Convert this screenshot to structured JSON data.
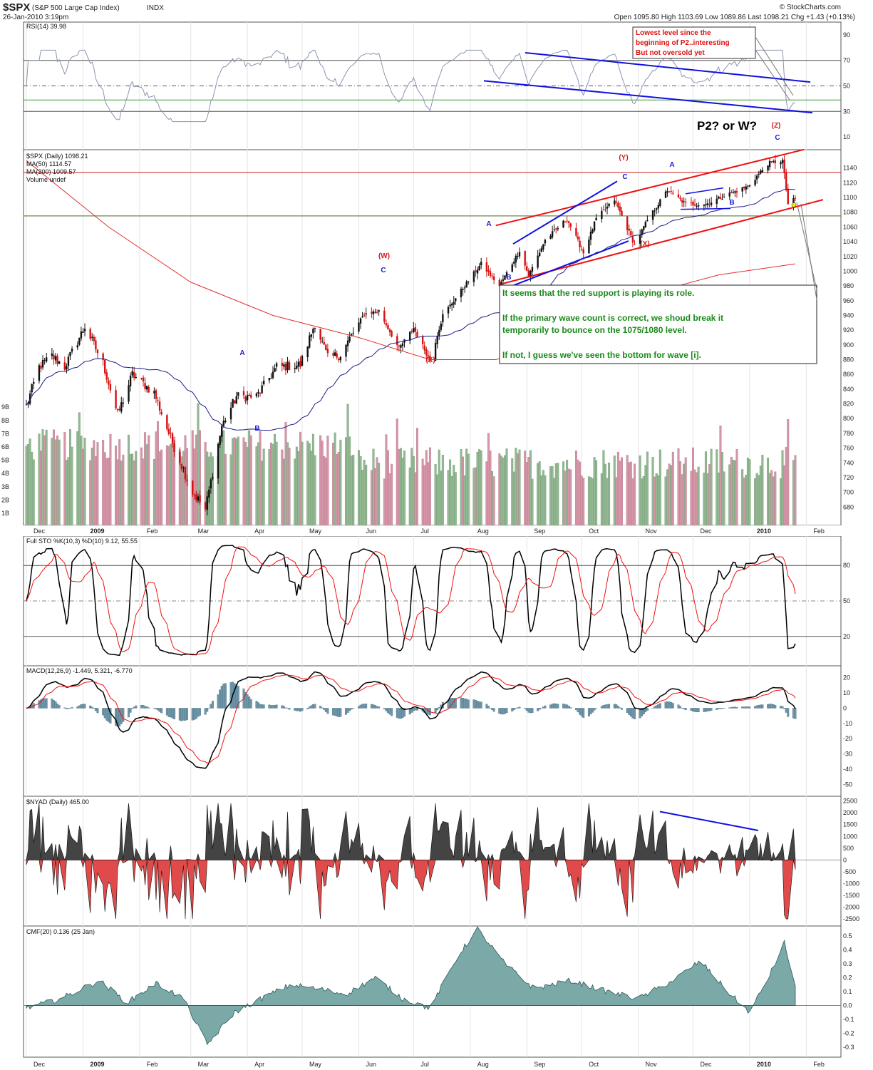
{
  "header": {
    "ticker": "$SPX",
    "name": "(S&P 500 Large Cap Index)",
    "exchange": "INDX",
    "datetime": "26-Jan-2010 3:19pm",
    "watermark": "© StockCharts.com",
    "quote": "Open 1095.80  High 1103.69  Low 1089.86  Last 1098.21  Chg +1.43 (+0.13%)"
  },
  "colors": {
    "up": "#111111",
    "down": "#d41111",
    "ma50": "#1c1c8c",
    "ma200": "#e03030",
    "channel_red": "#ee1111",
    "channel_blue": "#1010e0",
    "volume_up": "#94b894",
    "volume_down": "#d596a8",
    "stoch_k": "#000000",
    "stoch_d": "#ee1111",
    "macd_hist": "#6f97aa",
    "nyad_pos": "#444444",
    "nyad_neg": "#e04a4a",
    "cmf_fill": "#7aa9a8",
    "note_green": "#1a8a1a"
  },
  "icons": {
    "volume": "bar-chart-icon"
  },
  "chart_data": [
    {
      "panel": "rsi",
      "type": "line",
      "label": "RSI(14) 39.98",
      "ylim": [
        0,
        100
      ],
      "yticks": [
        "90",
        "70",
        "50",
        "30",
        "10"
      ],
      "reference_lines": [
        70,
        50,
        30
      ],
      "support_line": 39
    },
    {
      "panel": "price",
      "type": "ohlc",
      "label": "$SPX (Daily) 1098.21",
      "legend": [
        "MA(50) 1114.57",
        "MA(200) 1009.57",
        "Volume undef"
      ],
      "ylim": [
        660,
        1160
      ],
      "yticks": [
        "1140",
        "1120",
        "1100",
        "1080",
        "1060",
        "1040",
        "1020",
        "1000",
        "980",
        "960",
        "940",
        "920",
        "900",
        "880",
        "860",
        "840",
        "820",
        "800",
        "780",
        "760",
        "740",
        "720",
        "700",
        "680"
      ],
      "volume_ticks": [
        "9B",
        "8B",
        "7B",
        "6B",
        "5B",
        "4B",
        "3B",
        "2B",
        "1B"
      ],
      "x_months": [
        "Dec",
        "2009",
        "Feb",
        "Mar",
        "Apr",
        "May",
        "Jun",
        "Jul",
        "Aug",
        "Sep",
        "Oct",
        "Nov",
        "Dec",
        "2010",
        "Feb"
      ],
      "close_path": [
        [
          "2008-12-01",
          817
        ],
        [
          "2008-12-08",
          870
        ],
        [
          "2008-12-15",
          885
        ],
        [
          "2008-12-22",
          870
        ],
        [
          "2009-01-02",
          925
        ],
        [
          "2009-01-12",
          875
        ],
        [
          "2009-01-20",
          805
        ],
        [
          "2009-01-28",
          860
        ],
        [
          "2009-02-09",
          835
        ],
        [
          "2009-02-17",
          780
        ],
        [
          "2009-03-02",
          700
        ],
        [
          "2009-03-09",
          677
        ],
        [
          "2009-03-18",
          790
        ],
        [
          "2009-03-26",
          830
        ],
        [
          "2009-04-06",
          830
        ],
        [
          "2009-04-17",
          870
        ],
        [
          "2009-04-30",
          873
        ],
        [
          "2009-05-08",
          930
        ],
        [
          "2009-05-15",
          882
        ],
        [
          "2009-05-22",
          887
        ],
        [
          "2009-06-04",
          942
        ],
        [
          "2009-06-12",
          946
        ],
        [
          "2009-06-23",
          895
        ],
        [
          "2009-07-01",
          923
        ],
        [
          "2009-07-10",
          879
        ],
        [
          "2009-07-17",
          940
        ],
        [
          "2009-07-31",
          987
        ],
        [
          "2009-08-07",
          1010
        ],
        [
          "2009-08-17",
          980
        ],
        [
          "2009-08-28",
          1028
        ],
        [
          "2009-09-02",
          994
        ],
        [
          "2009-09-11",
          1042
        ],
        [
          "2009-09-23",
          1071
        ],
        [
          "2009-10-02",
          1025
        ],
        [
          "2009-10-09",
          1071
        ],
        [
          "2009-10-19",
          1097
        ],
        [
          "2009-10-30",
          1036
        ],
        [
          "2009-11-06",
          1069
        ],
        [
          "2009-11-17",
          1110
        ],
        [
          "2009-11-27",
          1091
        ],
        [
          "2009-12-08",
          1091
        ],
        [
          "2009-12-18",
          1102
        ],
        [
          "2009-12-31",
          1115
        ],
        [
          "2010-01-11",
          1146
        ],
        [
          "2010-01-19",
          1150
        ],
        [
          "2010-01-22",
          1091
        ],
        [
          "2010-01-26",
          1098
        ]
      ],
      "support_channel": {
        "upper": [
          [
            "2009-08-15",
            1062
          ],
          [
            "2010-01-26",
            1165
          ]
        ],
        "lower": [
          [
            "2009-08-15",
            983
          ],
          [
            "2010-01-26",
            1095
          ]
        ]
      },
      "wave_labels_blue": [
        "A",
        "B",
        "C",
        "A",
        "B",
        "C",
        "A",
        "B",
        "C",
        "A",
        "B",
        "C"
      ],
      "wave_labels_red": [
        "(W)",
        "(X)",
        "(Y)",
        "(X)",
        "(Z)"
      ],
      "annotation_title": "P2? or W?",
      "annotation_lines": [
        "It seems that the red support is playing its role.",
        "",
        "If the primary wave count is correct, we shoud break it",
        "temporarily to bounce on the 1075/1080 level.",
        "",
        "If not, I guess we've seen the bottom for wave [i]."
      ],
      "rsi_note": [
        "Lowest level since the",
        "beginning of P2..interesting",
        "But not oversold yet"
      ]
    },
    {
      "panel": "stochastic",
      "type": "line",
      "label": "Full STO %K(10,3) %D(10) 9.12, 55.55",
      "ylim": [
        0,
        100
      ],
      "yticks": [
        "80",
        "50",
        "20"
      ]
    },
    {
      "panel": "macd",
      "type": "line",
      "label": "MACD(12,26,9) -1.449, 5.321, -6.770",
      "ylim": [
        -55,
        25
      ],
      "yticks": [
        "20",
        "10",
        "0",
        "-10",
        "-20",
        "-30",
        "-40",
        "-50"
      ]
    },
    {
      "panel": "nyad",
      "type": "area",
      "label": "$NYAD (Daily) 465.00",
      "ylim": [
        -2800,
        2700
      ],
      "yticks": [
        "2500",
        "2000",
        "1500",
        "1000",
        "500",
        "0",
        "-500",
        "-1000",
        "-1500",
        "-2000",
        "-2500"
      ]
    },
    {
      "panel": "cmf",
      "type": "area",
      "label": "CMF(20) 0.136 (25 Jan)",
      "ylim": [
        -0.35,
        0.55
      ],
      "yticks": [
        "0.5",
        "0.4",
        "0.3",
        "0.2",
        "0.1",
        "0.0",
        "-0.1",
        "-0.2",
        "-0.3"
      ]
    }
  ]
}
